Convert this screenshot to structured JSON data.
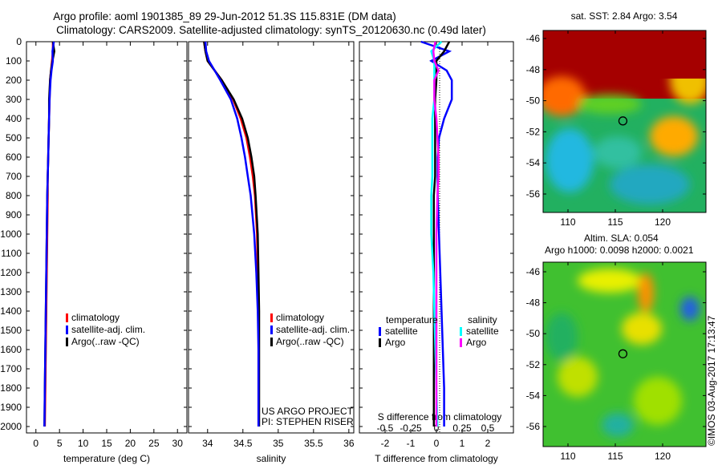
{
  "title_line1": "Argo profile: aoml 1901385_89 29-Jun-2012 51.3S 115.831E (DM data)",
  "title_line2": "Climatology: CARS2009. Satellite-adjusted climatology: synTS_20120630.nc (0.49d later)",
  "colors": {
    "climatology": "#ff0000",
    "satellite": "#0000ff",
    "argo": "#000000",
    "sal_satellite": "#00ffff",
    "sal_argo": "#ff00ff"
  },
  "chart_data": [
    {
      "type": "line",
      "name": "temperature",
      "xlabel": "temperature (deg C)",
      "xlim": [
        -2,
        32
      ],
      "ylim": [
        2030,
        0
      ],
      "xticks": [
        "0",
        "5",
        "10",
        "15",
        "20",
        "25",
        "30"
      ],
      "xtick_values": [
        0,
        5,
        10,
        15,
        20,
        25,
        30
      ],
      "yticks": [
        "0",
        "100",
        "200",
        "300",
        "400",
        "500",
        "600",
        "700",
        "800",
        "900",
        "1000",
        "1100",
        "1200",
        "1300",
        "1400",
        "1500",
        "1600",
        "1700",
        "1800",
        "1900",
        "2000"
      ],
      "depth": [
        0,
        50,
        100,
        150,
        200,
        300,
        400,
        500,
        600,
        700,
        800,
        1000,
        1200,
        1400,
        1600,
        1800,
        2000
      ],
      "series": [
        {
          "name": "climatology",
          "key": "climatology",
          "values": [
            3.6,
            3.6,
            3.4,
            3.2,
            3.0,
            2.9,
            2.8,
            2.7,
            2.6,
            2.5,
            2.5,
            2.4,
            2.3,
            2.2,
            2.1,
            2.0,
            1.9
          ]
        },
        {
          "name": "Argo(..raw -QC)",
          "key": "argo",
          "values": [
            3.6,
            3.9,
            3.5,
            3.2,
            3.0,
            2.8,
            2.8,
            2.7,
            2.6,
            2.5,
            2.4,
            2.3,
            2.2,
            2.1,
            2.0,
            1.9,
            1.8
          ]
        },
        {
          "name": "satellite-adj. clim.",
          "key": "satellite",
          "values": [
            3.8,
            3.5,
            3.6,
            3.3,
            3.1,
            2.9,
            2.8,
            2.7,
            2.6,
            2.5,
            2.4,
            2.3,
            2.2,
            2.1,
            2.0,
            1.9,
            1.8
          ]
        }
      ],
      "legend": [
        "climatology",
        "satellite-adj. clim.",
        "Argo(..raw -QC)"
      ]
    },
    {
      "type": "line",
      "name": "salinity",
      "xlabel": "salinity",
      "xlim": [
        33.73,
        36.07
      ],
      "ylim": [
        2030,
        0
      ],
      "xticks": [
        "34",
        "34.5",
        "35",
        "35.5",
        "36"
      ],
      "xtick_values": [
        34,
        34.5,
        35,
        35.5,
        36
      ],
      "depth": [
        0,
        50,
        100,
        150,
        200,
        300,
        400,
        500,
        600,
        700,
        800,
        1000,
        1200,
        1400,
        1600,
        1800,
        2000
      ],
      "series": [
        {
          "name": "climatology",
          "key": "climatology",
          "values": [
            33.95,
            33.97,
            34.0,
            34.1,
            34.2,
            34.36,
            34.47,
            34.55,
            34.6,
            34.64,
            34.67,
            34.7,
            34.71,
            34.72,
            34.72,
            34.72,
            34.72
          ]
        },
        {
          "name": "Argo(..raw -QC)",
          "key": "argo",
          "values": [
            33.95,
            33.97,
            34.0,
            34.1,
            34.2,
            34.37,
            34.49,
            34.57,
            34.62,
            34.66,
            34.68,
            34.71,
            34.72,
            34.73,
            34.73,
            34.73,
            34.73
          ]
        },
        {
          "name": "satellite-adj. clim.",
          "key": "satellite",
          "values": [
            33.97,
            33.98,
            34.02,
            34.1,
            34.18,
            34.33,
            34.42,
            34.48,
            34.53,
            34.57,
            34.61,
            34.66,
            34.69,
            34.71,
            34.72,
            34.72,
            34.72
          ]
        }
      ],
      "legend": [
        "climatology",
        "satellite-adj. clim.",
        "Argo(..raw -QC)"
      ],
      "annotation": [
        "US ARGO PROJECT",
        "PI: STEPHEN RISER"
      ]
    },
    {
      "type": "line",
      "name": "difference",
      "xlabel": "T difference from climatology",
      "x2label": "S difference from climatology",
      "xlim": [
        -3,
        3
      ],
      "x2lim": [
        -0.75,
        0.75
      ],
      "ylim": [
        2030,
        0
      ],
      "xticks": [
        "-2",
        "-1",
        "0",
        "1",
        "2"
      ],
      "xtick_values": [
        -2,
        -1,
        0,
        1,
        2
      ],
      "x2ticks": [
        "-0.5",
        "-0.25",
        "0",
        "0.25",
        "0.5"
      ],
      "x2tick_values": [
        -0.5,
        -0.25,
        0,
        0.25,
        0.5
      ],
      "depth": [
        0,
        50,
        100,
        150,
        200,
        300,
        400,
        500,
        600,
        700,
        800,
        1000,
        1200,
        1400,
        1600,
        1800,
        2000
      ],
      "series": [
        {
          "name": "temperature satellite",
          "key": "satellite",
          "axis": "T",
          "values": [
            -0.6,
            0.5,
            -0.2,
            0.4,
            0.6,
            0.6,
            0.3,
            0.1,
            0.05,
            0.05,
            0.05,
            0.1,
            0.15,
            0.2,
            0.25,
            0.3,
            0.3
          ]
        },
        {
          "name": "temperature Argo",
          "key": "argo",
          "axis": "T",
          "values": [
            0.5,
            0.3,
            0,
            0,
            0,
            -0.05,
            -0.05,
            -0.05,
            -0.05,
            -0.05,
            -0.1,
            -0.1,
            -0.1,
            -0.1,
            -0.1,
            -0.1,
            -0.1
          ]
        },
        {
          "name": "salinity satellite",
          "key": "sal_satellite",
          "axis": "S",
          "values": [
            0.05,
            -0.05,
            -0.02,
            -0.02,
            -0.02,
            -0.02,
            -0.04,
            -0.04,
            -0.04,
            -0.04,
            -0.05,
            -0.05,
            -0.03,
            -0.02,
            -0.01,
            0,
            0.01
          ]
        },
        {
          "name": "salinity Argo",
          "key": "sal_argo",
          "axis": "S",
          "values": [
            -0.01,
            -0.03,
            -0.02,
            0.02,
            -0.02,
            -0.02,
            0,
            0.01,
            0.02,
            0.02,
            0.01,
            0,
            0,
            0,
            0,
            0,
            0
          ]
        }
      ],
      "legend_temperature": {
        "title": "temperature",
        "items": [
          "satellite",
          "Argo"
        ]
      },
      "legend_salinity": {
        "title": "salinity",
        "items": [
          "satellite",
          "Argo"
        ]
      }
    },
    {
      "type": "heatmap",
      "name": "sst_map",
      "title": "sat. SST: 2.84  Argo: 3.54",
      "xticks": [
        "110",
        "115",
        "120"
      ],
      "yticks": [
        "-46",
        "-48",
        "-50",
        "-52",
        "-54",
        "-56"
      ],
      "marker": {
        "lon": 115.8,
        "lat": -51.3
      }
    },
    {
      "type": "heatmap",
      "name": "sla_map",
      "title1": "Altim. SLA: 0.054",
      "title2": "Argo h1000: 0.0098 h2000: 0.0021",
      "xticks": [
        "110",
        "115",
        "120"
      ],
      "yticks": [
        "-46",
        "-48",
        "-50",
        "-52",
        "-54",
        "-56"
      ],
      "marker": {
        "lon": 115.8,
        "lat": -51.3
      }
    }
  ],
  "credit": "©IMOS 03-Aug-2017 17:13:47"
}
